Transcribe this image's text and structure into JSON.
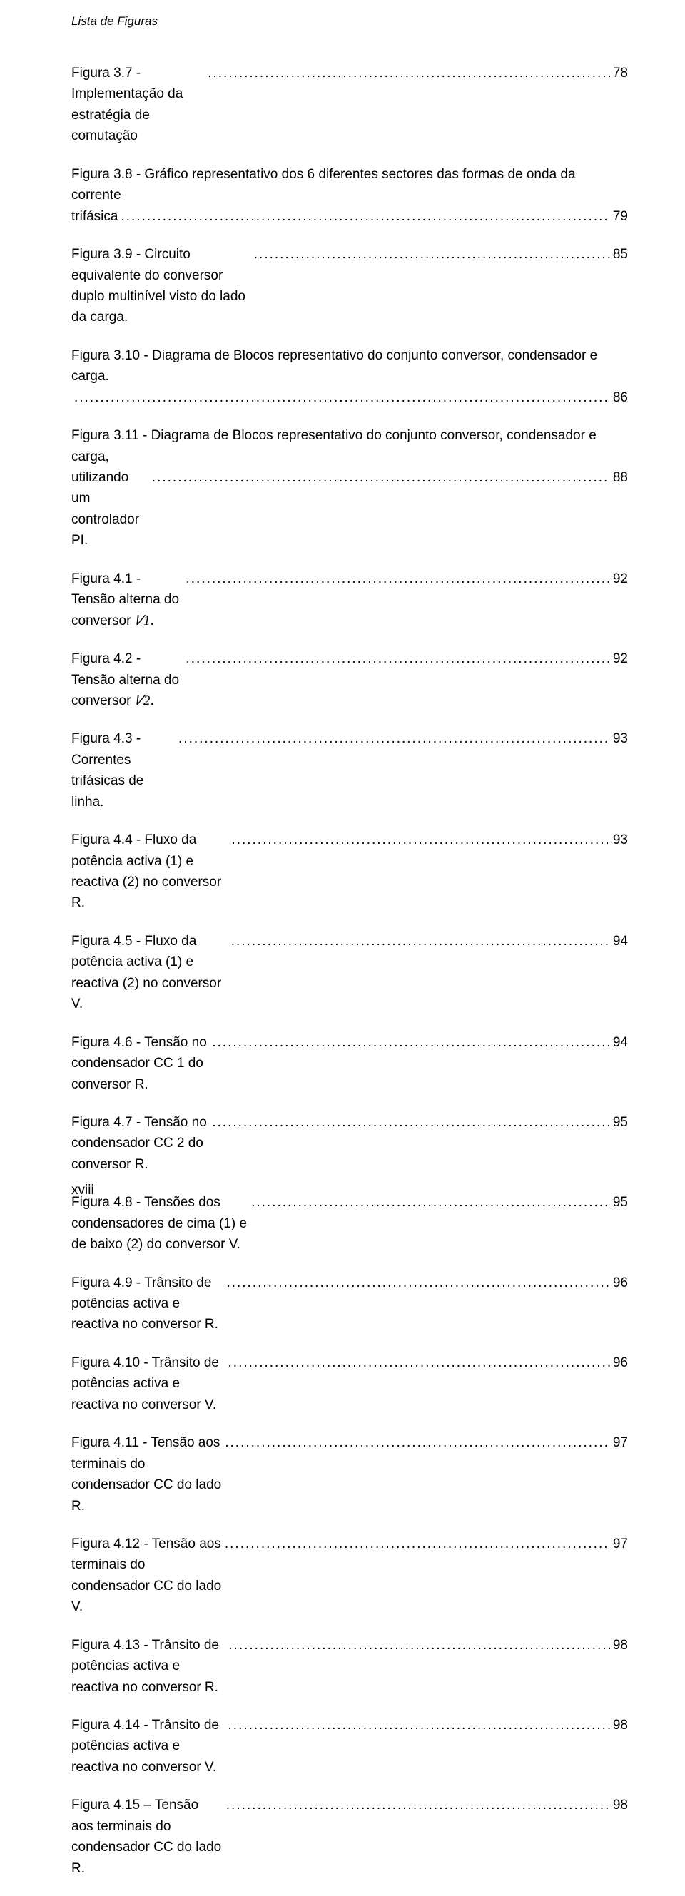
{
  "running_head": "Lista de Figuras",
  "page_number": "xviii",
  "text_color": "#000000",
  "background_color": "#ffffff",
  "font_family": "Arial",
  "base_fontsize_pt": 14,
  "entries": [
    {
      "label": "Figura 3.7 - Implementação da estratégia de comutação",
      "trail": "",
      "page": "78",
      "multiline": false
    },
    {
      "label": "Figura 3.8 - Gráfico representativo dos 6 diferentes sectores das formas de onda da corrente trifásica",
      "trail": "",
      "page": "79",
      "multiline": true,
      "break_after": "Figura 3.8 - Gráfico representativo dos 6 diferentes sectores das formas de onda da corrente"
    },
    {
      "label": "Figura 3.9 - Circuito equivalente do conversor duplo multinível visto do lado da carga.",
      "trail": "",
      "page": "85",
      "multiline": false
    },
    {
      "label": "Figura 3.10 - Diagrama de Blocos representativo do conjunto conversor, condensador e carga.",
      "trail": "",
      "page": "86",
      "multiline": true,
      "break_after": "Figura 3.10 - Diagrama de Blocos representativo do conjunto conversor, condensador e carga."
    },
    {
      "label": "Figura 3.11 - Diagrama de Blocos representativo do conjunto conversor, condensador e carga, utilizando um controlador PI.",
      "trail": "",
      "page": "88",
      "multiline": true,
      "break_after": "Figura 3.11 - Diagrama de Blocos representativo do conjunto conversor, condensador e carga,"
    },
    {
      "label": "Figura 4.1 - Tensão alterna do conversor ",
      "math": "𝑉1",
      "trail": ".",
      "page": "92",
      "multiline": false
    },
    {
      "label": "Figura 4.2 - Tensão alterna do conversor ",
      "math": "𝑉2",
      "trail": ".",
      "page": "92",
      "multiline": false
    },
    {
      "label": "Figura 4.3 - Correntes trifásicas de linha. ",
      "trail": "",
      "page": "93",
      "multiline": false
    },
    {
      "label": "Figura 4.4 - Fluxo da potência activa (1) e reactiva (2) no conversor R. ",
      "trail": "",
      "page": "93",
      "multiline": false
    },
    {
      "label": "Figura 4.5 - Fluxo da potência activa (1) e reactiva (2) no conversor V. ",
      "trail": "",
      "page": "94",
      "multiline": false
    },
    {
      "label": "Figura 4.6 - Tensão no condensador CC 1 do conversor R. ",
      "trail": "",
      "page": "94",
      "multiline": false
    },
    {
      "label": "Figura 4.7 - Tensão no condensador CC 2 do conversor R. ",
      "trail": "",
      "page": "95",
      "multiline": false
    },
    {
      "label": "Figura 4.8 - Tensões dos condensadores de cima (1) e de baixo (2) do conversor V. ",
      "trail": "",
      "page": "95",
      "multiline": false
    },
    {
      "label": "Figura 4.9 - Trânsito de potências activa e reactiva no conversor R. ",
      "trail": "",
      "page": "96",
      "multiline": false
    },
    {
      "label": "Figura 4.10 - Trânsito de potências activa e reactiva no conversor V. ",
      "trail": "",
      "page": "96",
      "multiline": false
    },
    {
      "label": "Figura 4.11 - Tensão aos terminais do condensador CC do lado R. ",
      "trail": "",
      "page": "97",
      "multiline": false
    },
    {
      "label": "Figura 4.12 - Tensão aos terminais do condensador CC do lado V. ",
      "trail": "",
      "page": "97",
      "multiline": false
    },
    {
      "label": "Figura 4.13 - Trânsito de potências activa e reactiva no conversor R. ",
      "trail": "",
      "page": "98",
      "multiline": false
    },
    {
      "label": "Figura 4.14 - Trânsito de potências activa e reactiva no conversor V. ",
      "trail": "",
      "page": "98",
      "multiline": false
    },
    {
      "label": "Figura 4.15 – Tensão aos terminais do condensador CC do lado R. ",
      "trail": "",
      "page": "98",
      "multiline": false
    }
  ]
}
